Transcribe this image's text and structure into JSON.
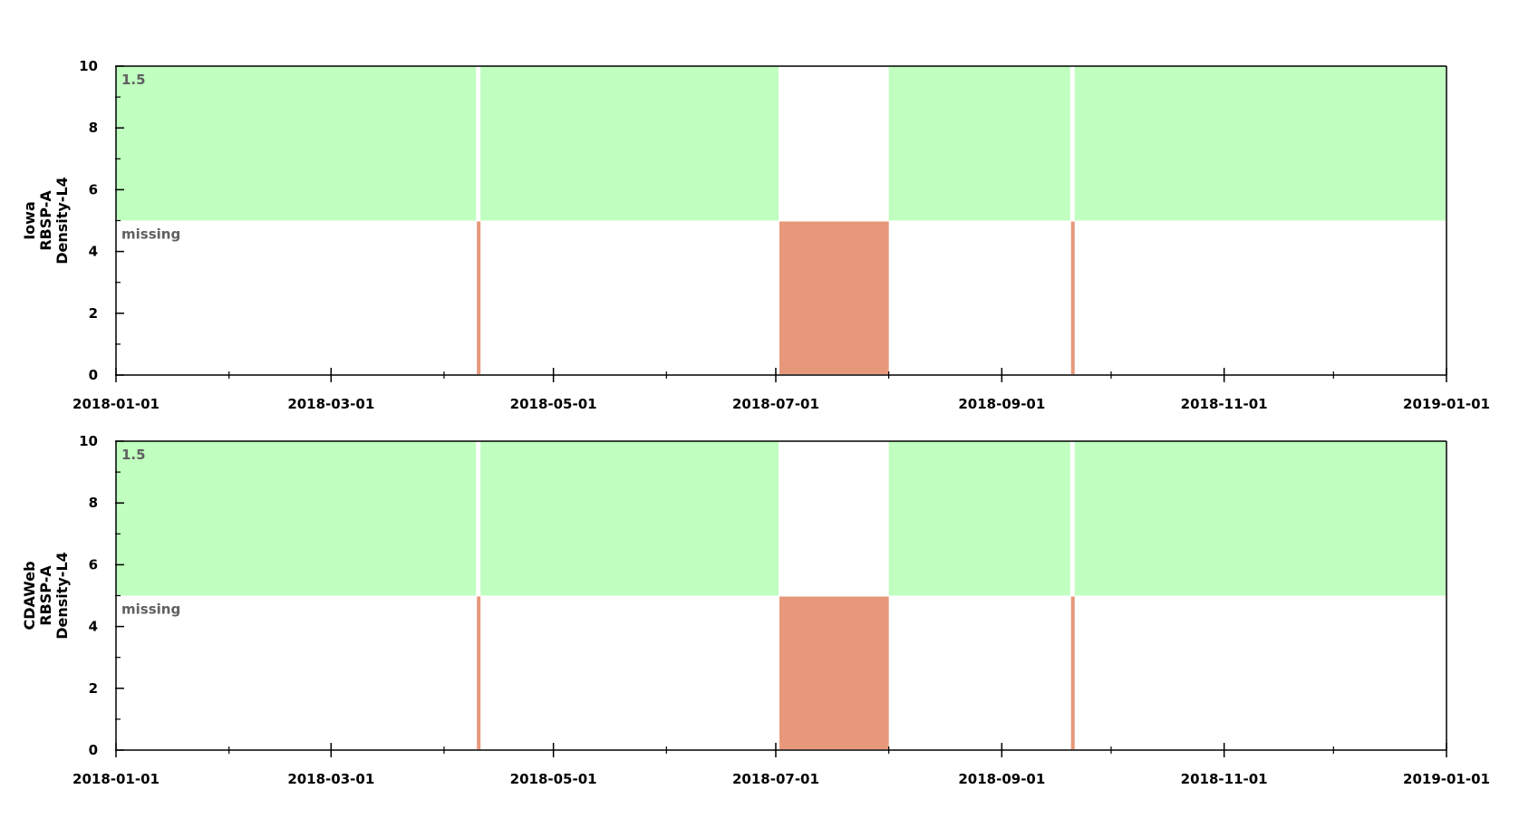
{
  "colors": {
    "present": "#c0ffc0",
    "missing": "#e8987a",
    "axis": "#000000",
    "label": "#606060"
  },
  "chart_data": [
    {
      "type": "timeline",
      "ylabel": [
        "Iowa",
        "RBSP-A",
        "Density-L4"
      ],
      "ylim": [
        0,
        10
      ],
      "yticks": [
        0,
        2,
        4,
        6,
        8,
        10
      ],
      "xlim": [
        "2018-01-01",
        "2019-01-01"
      ],
      "xticks": [
        "2018-01-01",
        "2018-03-01",
        "2018-05-01",
        "2018-07-01",
        "2018-09-01",
        "2018-11-01",
        "2019-01-01"
      ],
      "band_labels": {
        "present": "1.5",
        "missing": "missing"
      },
      "present": [
        {
          "start": "2018-01-01",
          "end": "2018-04-10"
        },
        {
          "start": "2018-04-11",
          "end": "2018-07-02"
        },
        {
          "start": "2018-08-01",
          "end": "2018-09-20"
        },
        {
          "start": "2018-09-21",
          "end": "2019-01-01"
        }
      ],
      "missing": [
        {
          "start": "2018-04-10",
          "end": "2018-04-11"
        },
        {
          "start": "2018-07-02",
          "end": "2018-08-01"
        },
        {
          "start": "2018-09-20",
          "end": "2018-09-21"
        }
      ]
    },
    {
      "type": "timeline",
      "ylabel": [
        "CDAWeb",
        "RBSP-A",
        "Density-L4"
      ],
      "ylim": [
        0,
        10
      ],
      "yticks": [
        0,
        2,
        4,
        6,
        8,
        10
      ],
      "xlim": [
        "2018-01-01",
        "2019-01-01"
      ],
      "xticks": [
        "2018-01-01",
        "2018-03-01",
        "2018-05-01",
        "2018-07-01",
        "2018-09-01",
        "2018-11-01",
        "2019-01-01"
      ],
      "band_labels": {
        "present": "1.5",
        "missing": "missing"
      },
      "present": [
        {
          "start": "2018-01-01",
          "end": "2018-04-10"
        },
        {
          "start": "2018-04-11",
          "end": "2018-07-02"
        },
        {
          "start": "2018-08-01",
          "end": "2018-09-20"
        },
        {
          "start": "2018-09-21",
          "end": "2019-01-01"
        }
      ],
      "missing": [
        {
          "start": "2018-04-10",
          "end": "2018-04-11"
        },
        {
          "start": "2018-07-02",
          "end": "2018-08-01"
        },
        {
          "start": "2018-09-20",
          "end": "2018-09-21"
        }
      ]
    }
  ]
}
